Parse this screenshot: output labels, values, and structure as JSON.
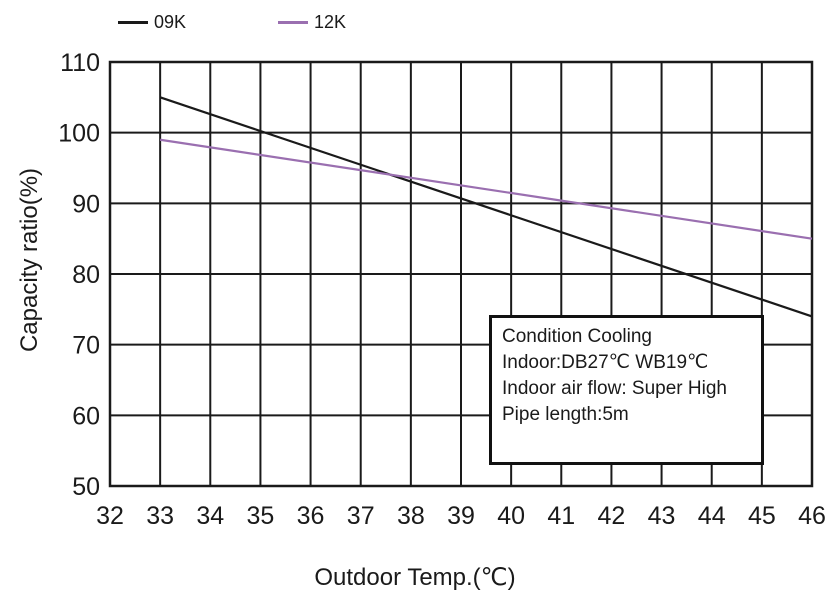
{
  "chart_data": {
    "type": "line",
    "xlabel": "Outdoor Temp.(℃)",
    "ylabel": "Capacity ratio(%)",
    "xlim": [
      32,
      46
    ],
    "ylim": [
      50,
      110
    ],
    "x_ticks": [
      "32",
      "33",
      "34",
      "35",
      "36",
      "37",
      "38",
      "39",
      "40",
      "41",
      "42",
      "43",
      "44",
      "45",
      "46"
    ],
    "y_ticks": [
      "50",
      "60",
      "70",
      "80",
      "90",
      "100",
      "110"
    ],
    "grid": true,
    "legend_position": "top-left",
    "series": [
      {
        "name": "09K",
        "color": "#1a1a1a",
        "x": [
          33,
          46
        ],
        "y": [
          105,
          74
        ]
      },
      {
        "name": "12K",
        "color": "#9a6fb0",
        "x": [
          33,
          46
        ],
        "y": [
          99,
          85
        ]
      }
    ],
    "annotation": {
      "lines": [
        "Condition Cooling",
        "Indoor:DB27℃ WB19℃",
        "Indoor air flow: Super High",
        "Pipe length:5m"
      ]
    }
  }
}
